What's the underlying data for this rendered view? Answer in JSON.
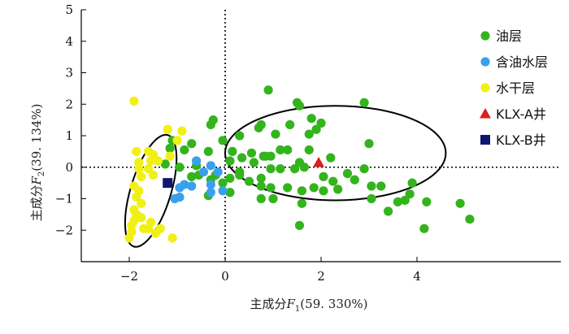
{
  "chart_data": {
    "type": "scatter",
    "xlabel": {
      "main": "主成分",
      "var": "F",
      "sub": "1",
      "pct": "(59. 330%)"
    },
    "ylabel": {
      "main": "主成分",
      "var": "F",
      "sub": "2",
      "pct": "(39. 134%)"
    },
    "xlim": [
      -3,
      7
    ],
    "ylim": [
      -3,
      5
    ],
    "xticks": [
      -2,
      0,
      2,
      4
    ],
    "yticks": [
      -2,
      -1,
      0,
      1,
      2,
      3,
      4,
      5
    ],
    "tick_labels": {
      "x": [
        "−2",
        "0",
        "2",
        "4"
      ],
      "y": [
        "−2",
        "−1",
        "0",
        "1",
        "2",
        "3",
        "4",
        "5"
      ]
    },
    "reference_lines": {
      "x": 0,
      "y": 0,
      "style": "dotted"
    },
    "legend_position": "top-right",
    "ellipses": [
      {
        "name": "water-dry-cluster",
        "cx": -1.55,
        "cy": -0.75,
        "rx": 1.85,
        "ry": 0.42,
        "angle_deg": 73
      },
      {
        "name": "oil-cluster",
        "cx": 2.3,
        "cy": 0.45,
        "rx": 2.3,
        "ry": 1.5,
        "angle_deg": 0
      }
    ],
    "series": [
      {
        "name": "油层",
        "marker": "circle",
        "color": "#33b41d",
        "points": [
          [
            0.9,
            2.45
          ],
          [
            1.5,
            2.05
          ],
          [
            1.55,
            1.95
          ],
          [
            2.9,
            2.05
          ],
          [
            1.8,
            1.55
          ],
          [
            2.0,
            1.4
          ],
          [
            -0.25,
            1.5
          ],
          [
            -0.3,
            1.35
          ],
          [
            0.75,
            1.35
          ],
          [
            1.35,
            1.35
          ],
          [
            -1.1,
            0.85
          ],
          [
            -0.7,
            0.75
          ],
          [
            0.3,
            1.0
          ],
          [
            0.7,
            1.25
          ],
          [
            1.05,
            1.05
          ],
          [
            1.75,
            1.05
          ],
          [
            1.9,
            1.2
          ],
          [
            3.0,
            0.75
          ],
          [
            -1.15,
            0.6
          ],
          [
            -0.85,
            0.55
          ],
          [
            -0.35,
            0.5
          ],
          [
            -0.05,
            0.85
          ],
          [
            0.15,
            0.5
          ],
          [
            0.55,
            0.45
          ],
          [
            0.8,
            0.35
          ],
          [
            0.95,
            0.35
          ],
          [
            1.15,
            0.55
          ],
          [
            1.3,
            0.55
          ],
          [
            1.75,
            0.55
          ],
          [
            -1.25,
            0.1
          ],
          [
            -0.95,
            0.0
          ],
          [
            -0.6,
            0.05
          ],
          [
            0.1,
            0.2
          ],
          [
            0.35,
            0.3
          ],
          [
            0.6,
            0.15
          ],
          [
            0.85,
            0.35
          ],
          [
            1.55,
            0.15
          ],
          [
            2.2,
            0.3
          ],
          [
            -0.7,
            -0.3
          ],
          [
            -0.55,
            -0.25
          ],
          [
            -0.3,
            -0.4
          ],
          [
            -0.2,
            -0.25
          ],
          [
            0.1,
            -0.35
          ],
          [
            0.3,
            -0.15
          ],
          [
            0.5,
            -0.45
          ],
          [
            0.75,
            -0.35
          ],
          [
            0.95,
            -0.05
          ],
          [
            1.15,
            -0.05
          ],
          [
            1.45,
            -0.05
          ],
          [
            1.65,
            0.0
          ],
          [
            2.05,
            -0.3
          ],
          [
            2.25,
            -0.45
          ],
          [
            2.55,
            -0.2
          ],
          [
            2.9,
            -0.05
          ],
          [
            3.25,
            -0.6
          ],
          [
            -0.35,
            -0.9
          ],
          [
            0.1,
            -0.8
          ],
          [
            0.75,
            -0.6
          ],
          [
            0.95,
            -0.65
          ],
          [
            1.3,
            -0.65
          ],
          [
            1.6,
            -0.75
          ],
          [
            1.85,
            -0.65
          ],
          [
            2.05,
            -0.75
          ],
          [
            2.35,
            -0.7
          ],
          [
            2.7,
            -0.4
          ],
          [
            3.05,
            -0.6
          ],
          [
            0.75,
            -1.0
          ],
          [
            1.0,
            -1.0
          ],
          [
            1.6,
            -1.15
          ],
          [
            3.05,
            -1.0
          ],
          [
            3.6,
            -1.1
          ],
          [
            3.9,
            -0.5
          ],
          [
            3.85,
            -0.85
          ],
          [
            3.75,
            -1.05
          ],
          [
            4.2,
            -1.1
          ],
          [
            4.9,
            -1.15
          ],
          [
            3.4,
            -1.4
          ],
          [
            5.1,
            -1.65
          ],
          [
            1.55,
            -1.85
          ],
          [
            4.15,
            -1.95
          ],
          [
            -0.05,
            -0.5
          ],
          [
            0.3,
            -0.25
          ]
        ]
      },
      {
        "name": "含油水层",
        "marker": "circle",
        "color": "#3aa0ec",
        "points": [
          [
            -0.6,
            0.2
          ],
          [
            -0.3,
            0.05
          ],
          [
            -0.15,
            -0.15
          ],
          [
            -0.45,
            -0.15
          ],
          [
            -0.3,
            -0.55
          ],
          [
            -0.7,
            -0.6
          ],
          [
            -0.85,
            -0.55
          ],
          [
            -0.95,
            -0.65
          ],
          [
            -0.3,
            -0.8
          ],
          [
            -0.05,
            -0.75
          ],
          [
            -0.95,
            -0.95
          ],
          [
            -1.05,
            -1.0
          ]
        ]
      },
      {
        "name": "水干层",
        "marker": "circle",
        "color": "#f0f015",
        "points": [
          [
            -1.9,
            2.1
          ],
          [
            -1.2,
            1.2
          ],
          [
            -0.9,
            1.15
          ],
          [
            -1.0,
            0.85
          ],
          [
            -1.85,
            0.5
          ],
          [
            -1.6,
            0.5
          ],
          [
            -1.5,
            0.4
          ],
          [
            -1.15,
            0.35
          ],
          [
            -1.8,
            0.15
          ],
          [
            -1.55,
            0.2
          ],
          [
            -1.4,
            0.2
          ],
          [
            -1.8,
            -0.05
          ],
          [
            -1.6,
            -0.05
          ],
          [
            -1.5,
            -0.25
          ],
          [
            -1.75,
            -0.3
          ],
          [
            -1.9,
            -0.6
          ],
          [
            -1.8,
            -0.75
          ],
          [
            -1.85,
            -0.95
          ],
          [
            -1.75,
            -1.15
          ],
          [
            -1.9,
            -1.35
          ],
          [
            -1.85,
            -1.5
          ],
          [
            -1.75,
            -1.6
          ],
          [
            -1.9,
            -1.7
          ],
          [
            -1.95,
            -1.85
          ],
          [
            -1.7,
            -1.95
          ],
          [
            -1.55,
            -1.75
          ],
          [
            -1.6,
            -1.95
          ],
          [
            -1.45,
            -2.1
          ],
          [
            -1.95,
            -2.05
          ],
          [
            -2.0,
            -2.25
          ],
          [
            -1.1,
            -2.25
          ],
          [
            -1.35,
            -1.95
          ]
        ]
      },
      {
        "name": "KLX-A井",
        "marker": "triangle",
        "color": "#dc1e1e",
        "points": [
          [
            1.95,
            0.15
          ]
        ]
      },
      {
        "name": "KLX-B井",
        "marker": "square",
        "color": "#0e1670",
        "points": [
          [
            -1.2,
            -0.5
          ]
        ]
      }
    ]
  }
}
